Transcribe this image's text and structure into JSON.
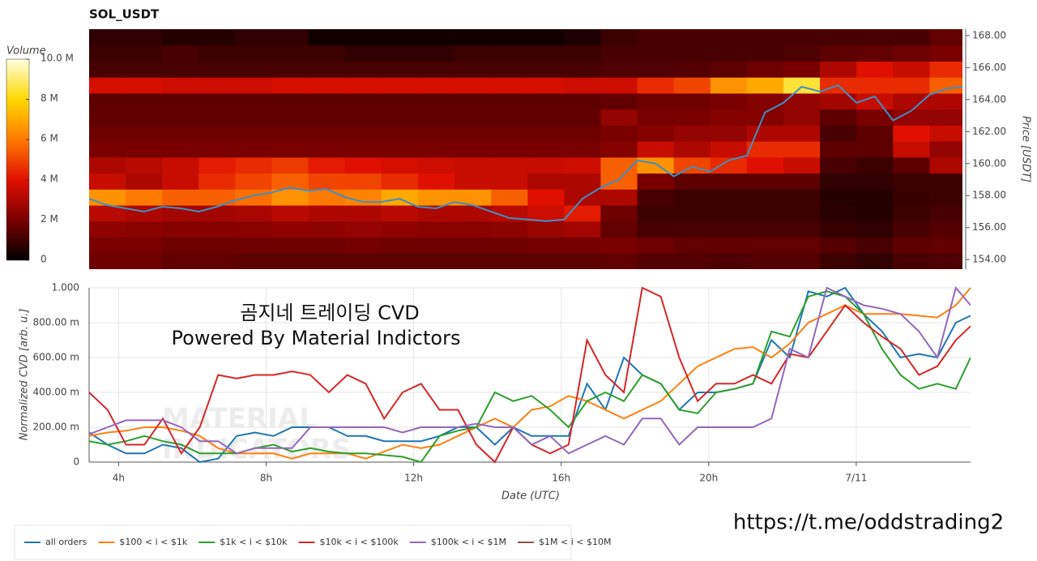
{
  "chart_data": [
    {
      "type": "heatmap",
      "title": "SOL_USDT",
      "colorbar_label": "Volume",
      "y2_label": "Price [USDT]",
      "xlim": [
        3.2,
        27.1
      ],
      "y2lim": [
        153.4,
        168.4
      ],
      "y2ticks": [
        {
          "value": 154,
          "label": "154.00"
        },
        {
          "value": 156,
          "label": "156.00"
        },
        {
          "value": 158,
          "label": "158.00"
        },
        {
          "value": 160,
          "label": "160.00"
        },
        {
          "value": 162,
          "label": "162.00"
        },
        {
          "value": 164,
          "label": "164.00"
        },
        {
          "value": 166,
          "label": "166.00"
        },
        {
          "value": 168,
          "label": "168.00"
        }
      ],
      "colorbar_lim": [
        0,
        10
      ],
      "colorbar_ticks": [
        0,
        {
          "value": 2,
          "label": "2 M"
        },
        {
          "value": 4,
          "label": "4 M"
        },
        {
          "value": 6,
          "label": "6 M"
        },
        {
          "value": 8,
          "label": "8 M"
        },
        {
          "value": 10,
          "label": "10.0 M"
        }
      ],
      "colormap": [
        "#000000",
        "#7a0000",
        "#e01000",
        "#ff7a00",
        "#ffd800",
        "#ffffe0"
      ],
      "xbins": [
        3.2,
        4.2,
        5.2,
        6.2,
        7.2,
        8.2,
        9.2,
        10.2,
        11.2,
        12.2,
        13.2,
        14.2,
        15.2,
        16.2,
        17.2,
        18.2,
        19.2,
        20.2,
        21.2,
        22.2,
        23.2,
        24.2,
        25.2,
        26.2,
        27.1
      ],
      "ybins": [
        153.4,
        154.4,
        155.4,
        156.4,
        157.4,
        158.4,
        159.4,
        160.4,
        161.4,
        162.4,
        163.4,
        164.4,
        165.4,
        166.4,
        167.4,
        168.4
      ],
      "z": [
        [
          1.8,
          1.8,
          1.6,
          1.6,
          1.5,
          1.5,
          1.5,
          1.5,
          1.5,
          1.5,
          1.5,
          1.5,
          1.5,
          1.5,
          1.6,
          1.4,
          1.4,
          1.3,
          1.4,
          1.4,
          1.0,
          0.8,
          1.2,
          1.3
        ],
        [
          2.0,
          2.0,
          1.8,
          1.8,
          1.8,
          1.8,
          1.8,
          1.9,
          1.8,
          1.8,
          1.8,
          1.8,
          1.9,
          1.9,
          2.0,
          1.8,
          1.6,
          1.6,
          1.6,
          1.6,
          1.4,
          1.2,
          1.5,
          1.6
        ],
        [
          2.4,
          2.3,
          2.2,
          2.2,
          2.3,
          2.4,
          2.4,
          2.5,
          2.4,
          2.3,
          2.3,
          2.4,
          2.6,
          2.8,
          1.6,
          1.2,
          1.2,
          1.2,
          1.2,
          1.2,
          0.9,
          0.8,
          1.2,
          1.4
        ],
        [
          3.2,
          3.0,
          2.8,
          2.8,
          2.9,
          3.2,
          3.0,
          3.0,
          3.2,
          3.0,
          3.0,
          3.2,
          3.6,
          4.2,
          1.8,
          1.0,
          1.0,
          1.0,
          1.0,
          1.0,
          0.7,
          0.6,
          1.0,
          1.2
        ],
        [
          6.5,
          6.0,
          5.5,
          5.5,
          5.8,
          6.5,
          6.0,
          6.2,
          7.0,
          6.5,
          6.5,
          5.5,
          4.0,
          3.0,
          3.0,
          1.2,
          1.0,
          1.0,
          1.0,
          1.0,
          0.6,
          0.6,
          0.9,
          1.0
        ],
        [
          3.5,
          3.0,
          3.5,
          4.5,
          5.0,
          5.5,
          5.0,
          5.0,
          4.5,
          4.0,
          3.5,
          3.5,
          3.0,
          3.0,
          5.5,
          2.0,
          1.5,
          1.5,
          1.5,
          1.5,
          0.8,
          0.8,
          1.0,
          1.0
        ],
        [
          3.0,
          3.2,
          3.5,
          4.2,
          4.5,
          4.8,
          4.2,
          4.0,
          3.8,
          3.6,
          3.5,
          3.5,
          3.5,
          3.6,
          5.5,
          6.5,
          5.0,
          4.5,
          4.0,
          3.5,
          1.2,
          1.0,
          1.5,
          3.0
        ],
        [
          2.0,
          2.0,
          2.0,
          2.0,
          2.0,
          2.0,
          2.0,
          2.0,
          2.0,
          2.0,
          2.0,
          2.0,
          2.0,
          2.0,
          2.2,
          3.5,
          3.0,
          3.5,
          4.5,
          4.5,
          1.5,
          1.5,
          3.5,
          2.5
        ],
        [
          1.8,
          1.8,
          1.8,
          1.8,
          1.8,
          1.8,
          1.8,
          1.8,
          1.8,
          1.8,
          1.8,
          1.8,
          1.8,
          1.8,
          2.0,
          2.2,
          2.5,
          2.5,
          3.0,
          3.0,
          1.2,
          1.5,
          4.0,
          3.5
        ],
        [
          1.6,
          1.6,
          1.6,
          1.6,
          1.6,
          1.6,
          1.6,
          1.6,
          1.6,
          1.6,
          1.6,
          1.6,
          1.6,
          1.6,
          2.5,
          2.0,
          2.0,
          2.2,
          2.2,
          2.5,
          1.5,
          2.0,
          2.5,
          2.5
        ],
        [
          1.5,
          1.5,
          1.5,
          1.5,
          1.5,
          1.5,
          1.5,
          1.5,
          1.5,
          1.5,
          1.5,
          1.5,
          1.5,
          1.5,
          1.6,
          1.8,
          1.8,
          2.0,
          2.2,
          2.5,
          2.8,
          3.5,
          3.0,
          3.0
        ],
        [
          3.8,
          3.8,
          3.6,
          3.6,
          3.6,
          3.8,
          3.8,
          3.8,
          3.8,
          3.8,
          3.8,
          3.8,
          3.8,
          3.6,
          3.6,
          4.5,
          5.0,
          6.5,
          7.0,
          8.5,
          4.5,
          4.5,
          4.5,
          5.5
        ],
        [
          1.2,
          1.2,
          1.2,
          1.2,
          1.2,
          1.2,
          1.2,
          1.2,
          1.2,
          1.2,
          1.2,
          1.2,
          1.2,
          1.2,
          1.3,
          1.3,
          1.4,
          1.5,
          1.8,
          2.0,
          3.0,
          4.0,
          3.5,
          4.5
        ],
        [
          1.0,
          1.0,
          1.2,
          1.0,
          1.0,
          1.0,
          1.0,
          0.8,
          0.8,
          0.8,
          1.0,
          1.0,
          1.0,
          1.0,
          1.2,
          1.2,
          1.2,
          1.2,
          1.2,
          1.3,
          1.5,
          1.6,
          1.8,
          2.0
        ],
        [
          0.8,
          0.8,
          0.6,
          0.6,
          0.8,
          0.8,
          0.3,
          0.3,
          0.3,
          0.3,
          0.3,
          0.3,
          0.3,
          0.5,
          1.0,
          1.2,
          1.2,
          1.2,
          1.2,
          1.2,
          1.2,
          1.2,
          1.2,
          1.6
        ]
      ],
      "x": [
        3.2,
        3.7,
        4.2,
        4.7,
        5.2,
        5.7,
        6.2,
        6.7,
        7.2,
        7.7,
        8.2,
        8.7,
        9.2,
        9.7,
        10.2,
        10.7,
        11.2,
        11.7,
        12.2,
        12.7,
        13.2,
        13.7,
        14.2,
        14.7,
        15.2,
        15.7,
        16.2,
        16.7,
        17.2,
        17.7,
        18.2,
        18.7,
        19.2,
        19.7,
        20.2,
        20.7,
        21.2,
        21.7,
        22.2,
        22.7,
        23.2,
        23.7,
        24.2,
        24.7,
        25.2,
        25.7,
        26.2,
        26.7,
        27.1
      ],
      "price": {
        "color": "#3d8fc6",
        "axis": "y2",
        "values": [
          157.8,
          157.4,
          157.2,
          157.0,
          157.3,
          157.2,
          157.0,
          157.3,
          157.7,
          158.0,
          158.2,
          158.5,
          158.3,
          158.4,
          157.9,
          157.6,
          157.6,
          157.8,
          157.3,
          157.2,
          157.6,
          157.4,
          157.0,
          156.6,
          156.5,
          156.4,
          156.5,
          157.8,
          158.5,
          159.0,
          160.2,
          160.0,
          159.2,
          159.8,
          159.5,
          160.2,
          160.5,
          163.2,
          163.8,
          164.8,
          164.5,
          164.9,
          163.8,
          164.2,
          162.7,
          163.3,
          164.3,
          164.7,
          164.8
        ]
      }
    },
    {
      "type": "line",
      "ylabel": "Normalized CVD [arb. u.]",
      "xlabel": "Date (UTC)",
      "annotations": [
        "곰지네 트레이딩 CVD",
        "Powered By Material Indictors",
        "https://t.me/oddstrading2"
      ],
      "watermark": [
        "MATERIAL",
        "INDICATORS"
      ],
      "grid": true,
      "xlim": [
        3.2,
        27.1
      ],
      "ylim": [
        0,
        1
      ],
      "xticks": [
        {
          "value": 4,
          "label": "4h"
        },
        {
          "value": 8,
          "label": "8h"
        },
        {
          "value": 12,
          "label": "12h"
        },
        {
          "value": 16,
          "label": "16h"
        },
        {
          "value": 20,
          "label": "20h"
        },
        {
          "value": 24,
          "label": "7/11"
        }
      ],
      "yticks": [
        0,
        {
          "value": 0.2,
          "label": "200.00 m"
        },
        {
          "value": 0.4,
          "label": "400.00 m"
        },
        {
          "value": 0.6,
          "label": "600.00 m"
        },
        {
          "value": 0.8,
          "label": "800.00 m"
        },
        {
          "value": 1,
          "label": "1.000"
        }
      ],
      "x": [
        3.2,
        3.7,
        4.2,
        4.7,
        5.2,
        5.7,
        6.2,
        6.7,
        7.2,
        7.7,
        8.2,
        8.7,
        9.2,
        9.7,
        10.2,
        10.7,
        11.2,
        11.7,
        12.2,
        12.7,
        13.2,
        13.7,
        14.2,
        14.7,
        15.2,
        15.7,
        16.2,
        16.7,
        17.2,
        17.7,
        18.2,
        18.7,
        19.2,
        19.7,
        20.2,
        20.7,
        21.2,
        21.7,
        22.2,
        22.7,
        23.2,
        23.7,
        24.2,
        24.7,
        25.2,
        25.7,
        26.2,
        26.7,
        27.1
      ],
      "series": [
        {
          "name": "all orders",
          "color": "#1f77b4",
          "values": [
            0.17,
            0.1,
            0.05,
            0.05,
            0.1,
            0.08,
            0.0,
            0.02,
            0.15,
            0.17,
            0.15,
            0.2,
            0.2,
            0.2,
            0.15,
            0.15,
            0.12,
            0.12,
            0.12,
            0.15,
            0.2,
            0.2,
            0.1,
            0.2,
            0.15,
            0.15,
            0.15,
            0.45,
            0.3,
            0.6,
            0.5,
            0.45,
            0.3,
            0.4,
            0.4,
            0.42,
            0.45,
            0.7,
            0.6,
            0.98,
            0.95,
            1.0,
            0.85,
            0.75,
            0.6,
            0.62,
            0.6,
            0.8,
            0.84
          ]
        },
        {
          "name": "$100 < i < $1k",
          "color": "#ff7f0e",
          "values": [
            0.15,
            0.17,
            0.18,
            0.2,
            0.2,
            0.18,
            0.15,
            0.08,
            0.05,
            0.05,
            0.05,
            0.02,
            0.05,
            0.05,
            0.05,
            0.02,
            0.06,
            0.1,
            0.08,
            0.1,
            0.15,
            0.2,
            0.25,
            0.2,
            0.3,
            0.32,
            0.38,
            0.35,
            0.3,
            0.25,
            0.3,
            0.35,
            0.45,
            0.55,
            0.6,
            0.65,
            0.66,
            0.6,
            0.68,
            0.8,
            0.85,
            0.9,
            0.85,
            0.85,
            0.85,
            0.84,
            0.83,
            0.9,
            1.0
          ]
        },
        {
          "name": "$1k < i < $10k",
          "color": "#2ca02c",
          "values": [
            0.12,
            0.1,
            0.12,
            0.15,
            0.12,
            0.1,
            0.05,
            0.05,
            0.05,
            0.08,
            0.1,
            0.06,
            0.08,
            0.06,
            0.05,
            0.05,
            0.04,
            0.03,
            0.0,
            0.15,
            0.18,
            0.2,
            0.4,
            0.35,
            0.38,
            0.3,
            0.2,
            0.35,
            0.4,
            0.35,
            0.5,
            0.45,
            0.3,
            0.28,
            0.4,
            0.42,
            0.45,
            0.75,
            0.72,
            0.95,
            0.98,
            0.95,
            0.85,
            0.65,
            0.5,
            0.42,
            0.45,
            0.42,
            0.6
          ]
        },
        {
          "name": "$10k < i < $100k",
          "color": "#d62728",
          "values": [
            0.4,
            0.3,
            0.1,
            0.1,
            0.25,
            0.05,
            0.2,
            0.5,
            0.48,
            0.5,
            0.5,
            0.52,
            0.5,
            0.4,
            0.5,
            0.45,
            0.25,
            0.4,
            0.45,
            0.3,
            0.3,
            0.1,
            0.0,
            0.2,
            0.1,
            0.05,
            0.1,
            0.7,
            0.5,
            0.4,
            1.0,
            0.95,
            0.6,
            0.35,
            0.45,
            0.45,
            0.5,
            0.45,
            0.62,
            0.6,
            0.75,
            0.9,
            0.8,
            0.72,
            0.65,
            0.5,
            0.55,
            0.7,
            0.78
          ]
        },
        {
          "name": "$100k < i < $1M",
          "color": "#9467bd",
          "values": [
            0.16,
            0.2,
            0.24,
            0.24,
            0.24,
            0.2,
            0.12,
            0.12,
            0.05,
            0.08,
            0.08,
            0.08,
            0.2,
            0.2,
            0.2,
            0.2,
            0.2,
            0.17,
            0.2,
            0.2,
            0.2,
            0.22,
            0.2,
            0.2,
            0.1,
            0.15,
            0.05,
            0.1,
            0.15,
            0.1,
            0.25,
            0.25,
            0.1,
            0.2,
            0.2,
            0.2,
            0.2,
            0.25,
            0.65,
            0.6,
            1.0,
            0.95,
            0.9,
            0.88,
            0.85,
            0.75,
            0.6,
            1.0,
            0.9
          ]
        },
        {
          "name": "$1M < i < $10M",
          "color": "#8c564b",
          "values": [
            null,
            null,
            null,
            null,
            null,
            null,
            null,
            null,
            null,
            null,
            null,
            null,
            null,
            null,
            null,
            null,
            null,
            null,
            null,
            null,
            null,
            null,
            null,
            null,
            null,
            null,
            null,
            null,
            null,
            null,
            null,
            null,
            null,
            null,
            null,
            null,
            null,
            null,
            null,
            null,
            null,
            null,
            null,
            null,
            null,
            null,
            null,
            null,
            null
          ]
        }
      ]
    }
  ]
}
